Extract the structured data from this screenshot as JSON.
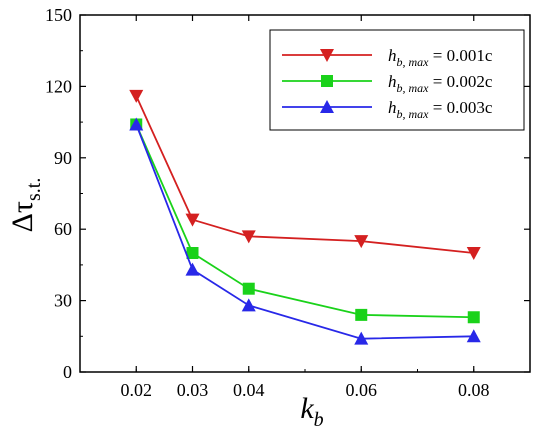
{
  "chart_data": {
    "type": "line",
    "xlabel": {
      "base": "k",
      "sub": "b"
    },
    "ylabel": {
      "base": "Δτ",
      "sub": "s.t."
    },
    "xlim": [
      0.01,
      0.09
    ],
    "ylim": [
      0,
      150
    ],
    "x_ticks": [
      0.02,
      0.03,
      0.04,
      0.06,
      0.08
    ],
    "x_tick_labels": [
      "0.02",
      "0.03",
      "0.04",
      "0.06",
      "0.08"
    ],
    "y_ticks": [
      0,
      30,
      60,
      90,
      120,
      150
    ],
    "y_tick_labels": [
      "0",
      "30",
      "60",
      "90",
      "120",
      "150"
    ],
    "grid": false,
    "legend_position": "top-right",
    "x": [
      0.02,
      0.03,
      0.04,
      0.06,
      0.08
    ],
    "series": [
      {
        "name": "h_b,max = 0.001c",
        "label_base": "h",
        "label_sub": "b, max",
        "label_rest": " = 0.001c",
        "color": "#d42020",
        "marker": "triangle-down",
        "values": [
          116,
          64,
          57,
          55,
          50
        ]
      },
      {
        "name": "h_b,max = 0.002c",
        "label_base": "h",
        "label_sub": "b, max",
        "label_rest": " = 0.002c",
        "color": "#1ad21a",
        "marker": "square",
        "values": [
          104,
          50,
          35,
          24,
          23
        ]
      },
      {
        "name": "h_b,max = 0.003c",
        "label_base": "h",
        "label_sub": "b, max",
        "label_rest": " = 0.003c",
        "color": "#2828e8",
        "marker": "triangle-up",
        "values": [
          104,
          43,
          28,
          14,
          15
        ]
      }
    ]
  }
}
